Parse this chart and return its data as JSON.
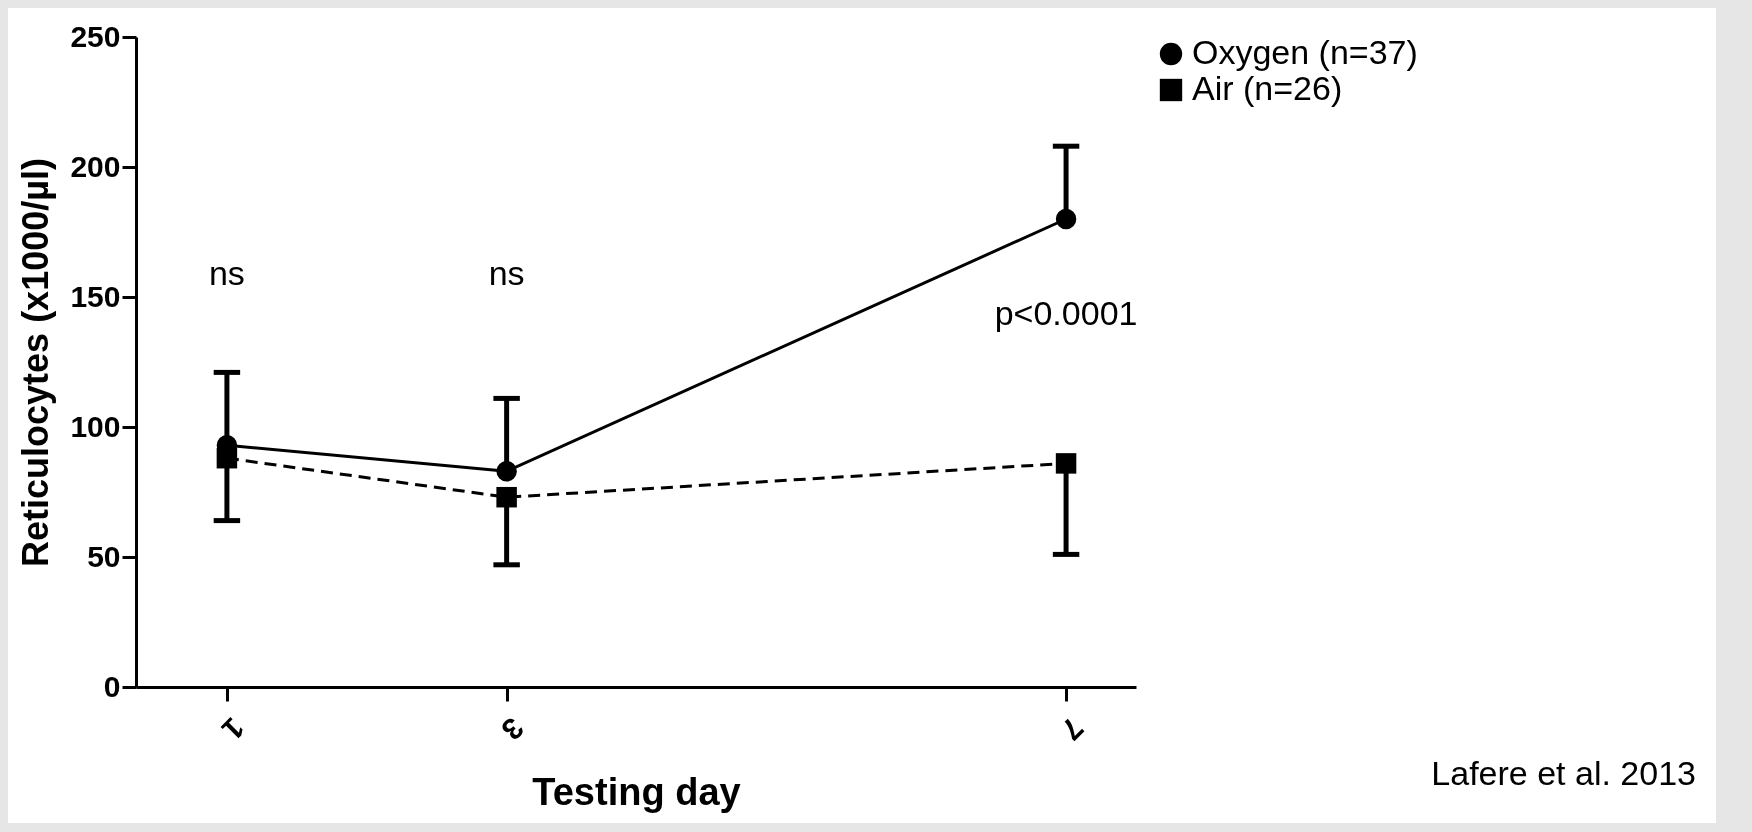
{
  "chart_data": {
    "type": "line",
    "xlabel": "Testing day",
    "ylabel": "Reticulocytes (x1000/µl)",
    "x": [
      1,
      3,
      7
    ],
    "xlim": [
      0.35,
      7.5
    ],
    "xticks": [
      1,
      3,
      7
    ],
    "ylim": [
      0,
      250
    ],
    "yticks": [
      0,
      50,
      100,
      150,
      200,
      250
    ],
    "series": [
      {
        "name": "Oxygen (n=37)",
        "color": "#000000",
        "marker": "circle",
        "line_style": "solid",
        "values": [
          93,
          83,
          180
        ],
        "errors": [
          [
            93,
            121
          ],
          [
            83,
            111
          ],
          [
            180,
            208
          ]
        ]
      },
      {
        "name": "Air (n=26)",
        "color": "#000000",
        "marker": "square",
        "line_style": "dashed",
        "values": [
          88,
          73,
          86
        ],
        "errors": [
          [
            64,
            88
          ],
          [
            47,
            73
          ],
          [
            51,
            86
          ]
        ]
      }
    ],
    "legend": "top right",
    "grid": false,
    "annotations": [
      "ns",
      "ns",
      "p<0.0001",
      "Lafere et al. 2013"
    ]
  }
}
